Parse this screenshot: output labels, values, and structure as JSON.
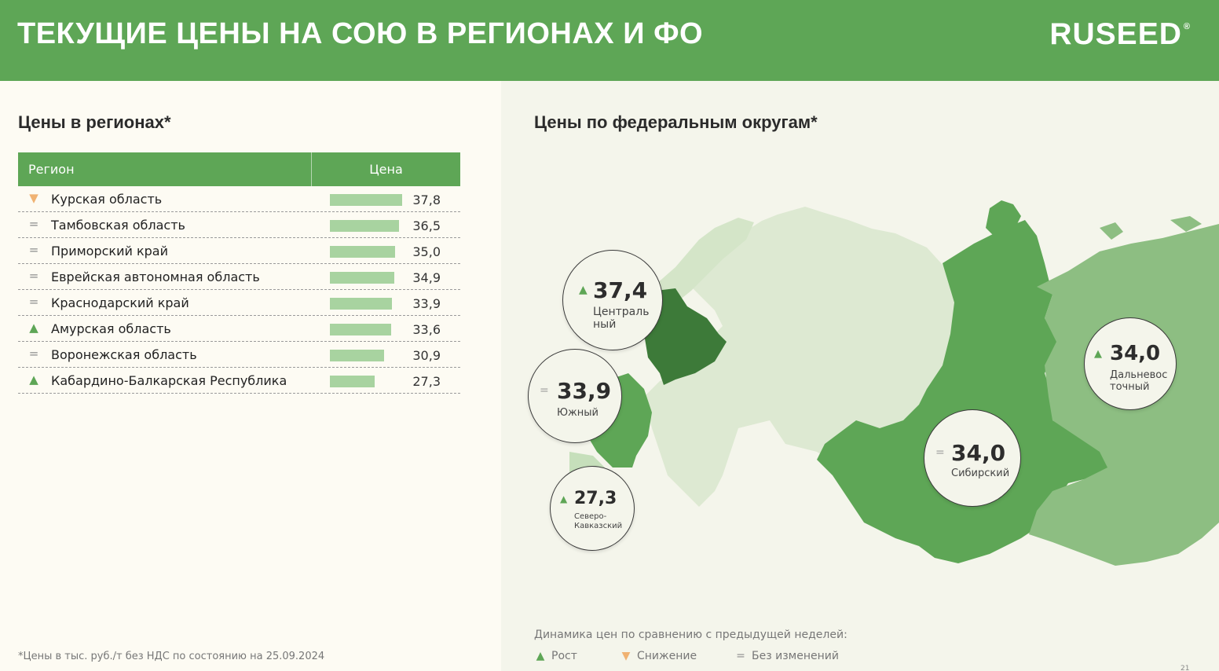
{
  "header": {
    "title": "ТЕКУЩИЕ ЦЕНЫ НА СОЮ В РЕГИОНАХ И ФО",
    "logo": "RUSEED",
    "logo_mark": "®"
  },
  "left": {
    "title": "Цены в регионах*"
  },
  "right": {
    "title": "Цены по федеральным округам*"
  },
  "colors": {
    "brand_green": "#5ea656",
    "up": "#5ea656",
    "down": "#f0b272",
    "same": "#8c8c8c",
    "bar": "#a8d3a0"
  },
  "chart_data": [
    {
      "type": "table",
      "columns": [
        "Регион",
        "Цена"
      ],
      "rows": [
        {
          "trend": "down",
          "region": "Курская область",
          "price": 37.8,
          "label": "37,8"
        },
        {
          "trend": "same",
          "region": "Тамбовская область",
          "price": 36.5,
          "label": "36,5"
        },
        {
          "trend": "same",
          "region": "Приморский край",
          "price": 35.0,
          "label": "35,0"
        },
        {
          "trend": "same",
          "region": "Еврейская автономная область",
          "price": 34.9,
          "label": "34,9"
        },
        {
          "trend": "same",
          "region": "Краснодарский край",
          "price": 33.9,
          "label": "33,9"
        },
        {
          "trend": "up",
          "region": "Амурская область",
          "price": 33.6,
          "label": "33,6"
        },
        {
          "trend": "same",
          "region": "Воронежская область",
          "price": 30.9,
          "label": "30,9"
        },
        {
          "trend": "up",
          "region": "Кабардино-Балкарская Республика",
          "price": 27.3,
          "label": "27,3"
        }
      ]
    },
    {
      "type": "map",
      "districts": [
        {
          "name": "Централь ный",
          "value": 37.4,
          "label": "37,4",
          "trend": "up"
        },
        {
          "name": "Южный",
          "value": 33.9,
          "label": "33,9",
          "trend": "same"
        },
        {
          "name": "Северо-Кавказский",
          "value": 27.3,
          "label": "27,3",
          "trend": "up"
        },
        {
          "name": "Сибирский",
          "value": 34.0,
          "label": "34,0",
          "trend": "same"
        },
        {
          "name": "Дальневос точный",
          "value": 34.0,
          "label": "34,0",
          "trend": "up"
        }
      ]
    }
  ],
  "footnote": "*Цены в тыс. руб./т без НДС по состоянию на 25.09.2024",
  "legend": {
    "title": "Динамика цен по сравнению с предыдущей неделей:",
    "items": [
      {
        "trend": "up",
        "label": "Рост"
      },
      {
        "trend": "down",
        "label": "Снижение"
      },
      {
        "trend": "same",
        "label": "Без изменений"
      }
    ]
  },
  "page_number": "21"
}
